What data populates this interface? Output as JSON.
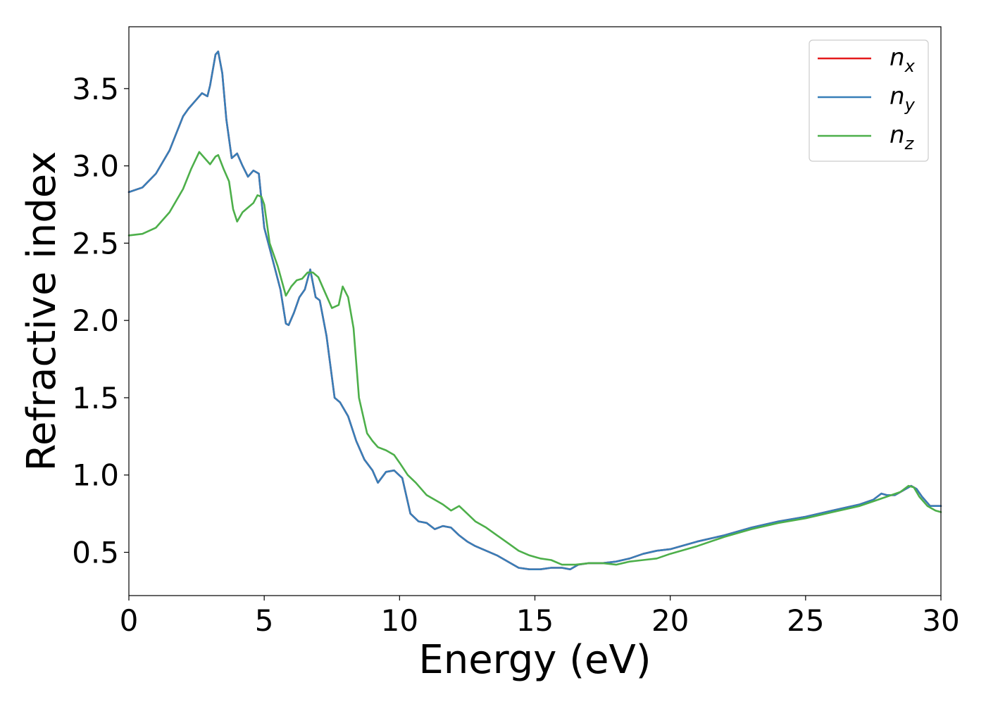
{
  "chart_data": {
    "type": "line",
    "title": "",
    "xlabel": "Energy (eV)",
    "ylabel": "Refractive index",
    "xlim": [
      0,
      30
    ],
    "ylim": [
      0.22,
      3.9
    ],
    "xticks": [
      0,
      5,
      10,
      15,
      20,
      25,
      30
    ],
    "yticks": [
      0.5,
      1.0,
      1.5,
      2.0,
      2.5,
      3.0,
      3.5
    ],
    "xtick_labels": [
      "0",
      "5",
      "10",
      "15",
      "20",
      "25",
      "30"
    ],
    "ytick_labels": [
      "0.5",
      "1.0",
      "1.5",
      "2.0",
      "2.5",
      "3.0",
      "3.5"
    ],
    "grid": false,
    "legend_position": "top-right",
    "series": [
      {
        "name": "n_x",
        "legend_base": "n",
        "legend_sub": "x",
        "color": "#e41a1c",
        "x": [
          0,
          0.5,
          1.0,
          1.5,
          2.0,
          2.2,
          2.5,
          2.7,
          2.9,
          3.0,
          3.2,
          3.3,
          3.45,
          3.6,
          3.8,
          4.0,
          4.2,
          4.4,
          4.6,
          4.8,
          5.0,
          5.3,
          5.6,
          5.8,
          5.9,
          6.1,
          6.3,
          6.5,
          6.7,
          6.9,
          7.05,
          7.3,
          7.6,
          7.8,
          8.1,
          8.4,
          8.7,
          9.0,
          9.2,
          9.5,
          9.8,
          10.1,
          10.4,
          10.7,
          11.0,
          11.3,
          11.6,
          11.9,
          12.2,
          12.5,
          12.8,
          13.2,
          13.6,
          14.0,
          14.4,
          14.8,
          15.2,
          15.6,
          16.0,
          16.3,
          16.6,
          17.0,
          17.5,
          18.0,
          18.5,
          19.0,
          19.5,
          20.0,
          21.0,
          22.0,
          23.0,
          24.0,
          25.0,
          26.0,
          27.0,
          27.5,
          27.8,
          28.0,
          28.3,
          28.6,
          28.9,
          29.1,
          29.3,
          29.6,
          30.0
        ],
        "y": [
          2.83,
          2.86,
          2.95,
          3.1,
          3.32,
          3.37,
          3.43,
          3.47,
          3.45,
          3.52,
          3.72,
          3.74,
          3.6,
          3.3,
          3.05,
          3.08,
          3.0,
          2.93,
          2.97,
          2.95,
          2.6,
          2.4,
          2.2,
          1.98,
          1.97,
          2.05,
          2.15,
          2.2,
          2.33,
          2.15,
          2.13,
          1.9,
          1.5,
          1.47,
          1.38,
          1.22,
          1.1,
          1.03,
          0.95,
          1.02,
          1.03,
          0.98,
          0.75,
          0.7,
          0.69,
          0.65,
          0.67,
          0.66,
          0.61,
          0.57,
          0.54,
          0.51,
          0.48,
          0.44,
          0.4,
          0.39,
          0.39,
          0.4,
          0.4,
          0.39,
          0.42,
          0.43,
          0.43,
          0.44,
          0.46,
          0.49,
          0.51,
          0.52,
          0.57,
          0.61,
          0.66,
          0.7,
          0.73,
          0.77,
          0.81,
          0.84,
          0.88,
          0.87,
          0.87,
          0.9,
          0.93,
          0.91,
          0.86,
          0.8,
          0.8
        ]
      },
      {
        "name": "n_y",
        "legend_base": "n",
        "legend_sub": "y",
        "color": "#377eb8",
        "x": [
          0,
          0.5,
          1.0,
          1.5,
          2.0,
          2.2,
          2.5,
          2.7,
          2.9,
          3.0,
          3.2,
          3.3,
          3.45,
          3.6,
          3.8,
          4.0,
          4.2,
          4.4,
          4.6,
          4.8,
          5.0,
          5.3,
          5.6,
          5.8,
          5.9,
          6.1,
          6.3,
          6.5,
          6.7,
          6.9,
          7.05,
          7.3,
          7.6,
          7.8,
          8.1,
          8.4,
          8.7,
          9.0,
          9.2,
          9.5,
          9.8,
          10.1,
          10.4,
          10.7,
          11.0,
          11.3,
          11.6,
          11.9,
          12.2,
          12.5,
          12.8,
          13.2,
          13.6,
          14.0,
          14.4,
          14.8,
          15.2,
          15.6,
          16.0,
          16.3,
          16.6,
          17.0,
          17.5,
          18.0,
          18.5,
          19.0,
          19.5,
          20.0,
          21.0,
          22.0,
          23.0,
          24.0,
          25.0,
          26.0,
          27.0,
          27.5,
          27.8,
          28.0,
          28.3,
          28.6,
          28.9,
          29.1,
          29.3,
          29.6,
          30.0
        ],
        "y": [
          2.83,
          2.86,
          2.95,
          3.1,
          3.32,
          3.37,
          3.43,
          3.47,
          3.45,
          3.52,
          3.72,
          3.74,
          3.6,
          3.3,
          3.05,
          3.08,
          3.0,
          2.93,
          2.97,
          2.95,
          2.6,
          2.4,
          2.2,
          1.98,
          1.97,
          2.05,
          2.15,
          2.2,
          2.33,
          2.15,
          2.13,
          1.9,
          1.5,
          1.47,
          1.38,
          1.22,
          1.1,
          1.03,
          0.95,
          1.02,
          1.03,
          0.98,
          0.75,
          0.7,
          0.69,
          0.65,
          0.67,
          0.66,
          0.61,
          0.57,
          0.54,
          0.51,
          0.48,
          0.44,
          0.4,
          0.39,
          0.39,
          0.4,
          0.4,
          0.39,
          0.42,
          0.43,
          0.43,
          0.44,
          0.46,
          0.49,
          0.51,
          0.52,
          0.57,
          0.61,
          0.66,
          0.7,
          0.73,
          0.77,
          0.81,
          0.84,
          0.88,
          0.87,
          0.87,
          0.9,
          0.93,
          0.91,
          0.86,
          0.8,
          0.8
        ]
      },
      {
        "name": "n_z",
        "legend_base": "n",
        "legend_sub": "z",
        "color": "#4daf4a",
        "x": [
          0,
          0.5,
          1.0,
          1.5,
          2.0,
          2.3,
          2.6,
          2.8,
          3.0,
          3.2,
          3.3,
          3.5,
          3.7,
          3.85,
          4.0,
          4.2,
          4.4,
          4.6,
          4.75,
          4.9,
          5.0,
          5.2,
          5.5,
          5.8,
          6.0,
          6.2,
          6.4,
          6.6,
          6.8,
          7.0,
          7.2,
          7.5,
          7.75,
          7.9,
          8.1,
          8.3,
          8.5,
          8.8,
          9.0,
          9.2,
          9.5,
          9.8,
          10.0,
          10.3,
          10.6,
          11.0,
          11.3,
          11.6,
          11.9,
          12.2,
          12.5,
          12.8,
          13.2,
          13.6,
          14.0,
          14.4,
          14.8,
          15.2,
          15.6,
          16.0,
          16.5,
          17.0,
          17.5,
          18.0,
          18.5,
          19.0,
          19.5,
          20.0,
          21.0,
          22.0,
          23.0,
          24.0,
          25.0,
          26.0,
          27.0,
          27.5,
          28.0,
          28.5,
          28.8,
          29.0,
          29.2,
          29.5,
          29.8,
          30.0
        ],
        "y": [
          2.55,
          2.56,
          2.6,
          2.7,
          2.85,
          2.98,
          3.09,
          3.05,
          3.01,
          3.06,
          3.07,
          2.98,
          2.9,
          2.72,
          2.64,
          2.7,
          2.73,
          2.76,
          2.81,
          2.8,
          2.75,
          2.5,
          2.35,
          2.16,
          2.22,
          2.26,
          2.27,
          2.31,
          2.31,
          2.28,
          2.2,
          2.08,
          2.1,
          2.22,
          2.15,
          1.95,
          1.5,
          1.27,
          1.22,
          1.18,
          1.16,
          1.13,
          1.08,
          1.0,
          0.95,
          0.87,
          0.84,
          0.81,
          0.77,
          0.8,
          0.75,
          0.7,
          0.66,
          0.61,
          0.56,
          0.51,
          0.48,
          0.46,
          0.45,
          0.42,
          0.42,
          0.43,
          0.43,
          0.42,
          0.44,
          0.45,
          0.46,
          0.49,
          0.54,
          0.6,
          0.65,
          0.69,
          0.72,
          0.76,
          0.8,
          0.83,
          0.86,
          0.89,
          0.93,
          0.92,
          0.86,
          0.8,
          0.77,
          0.76
        ]
      }
    ]
  }
}
